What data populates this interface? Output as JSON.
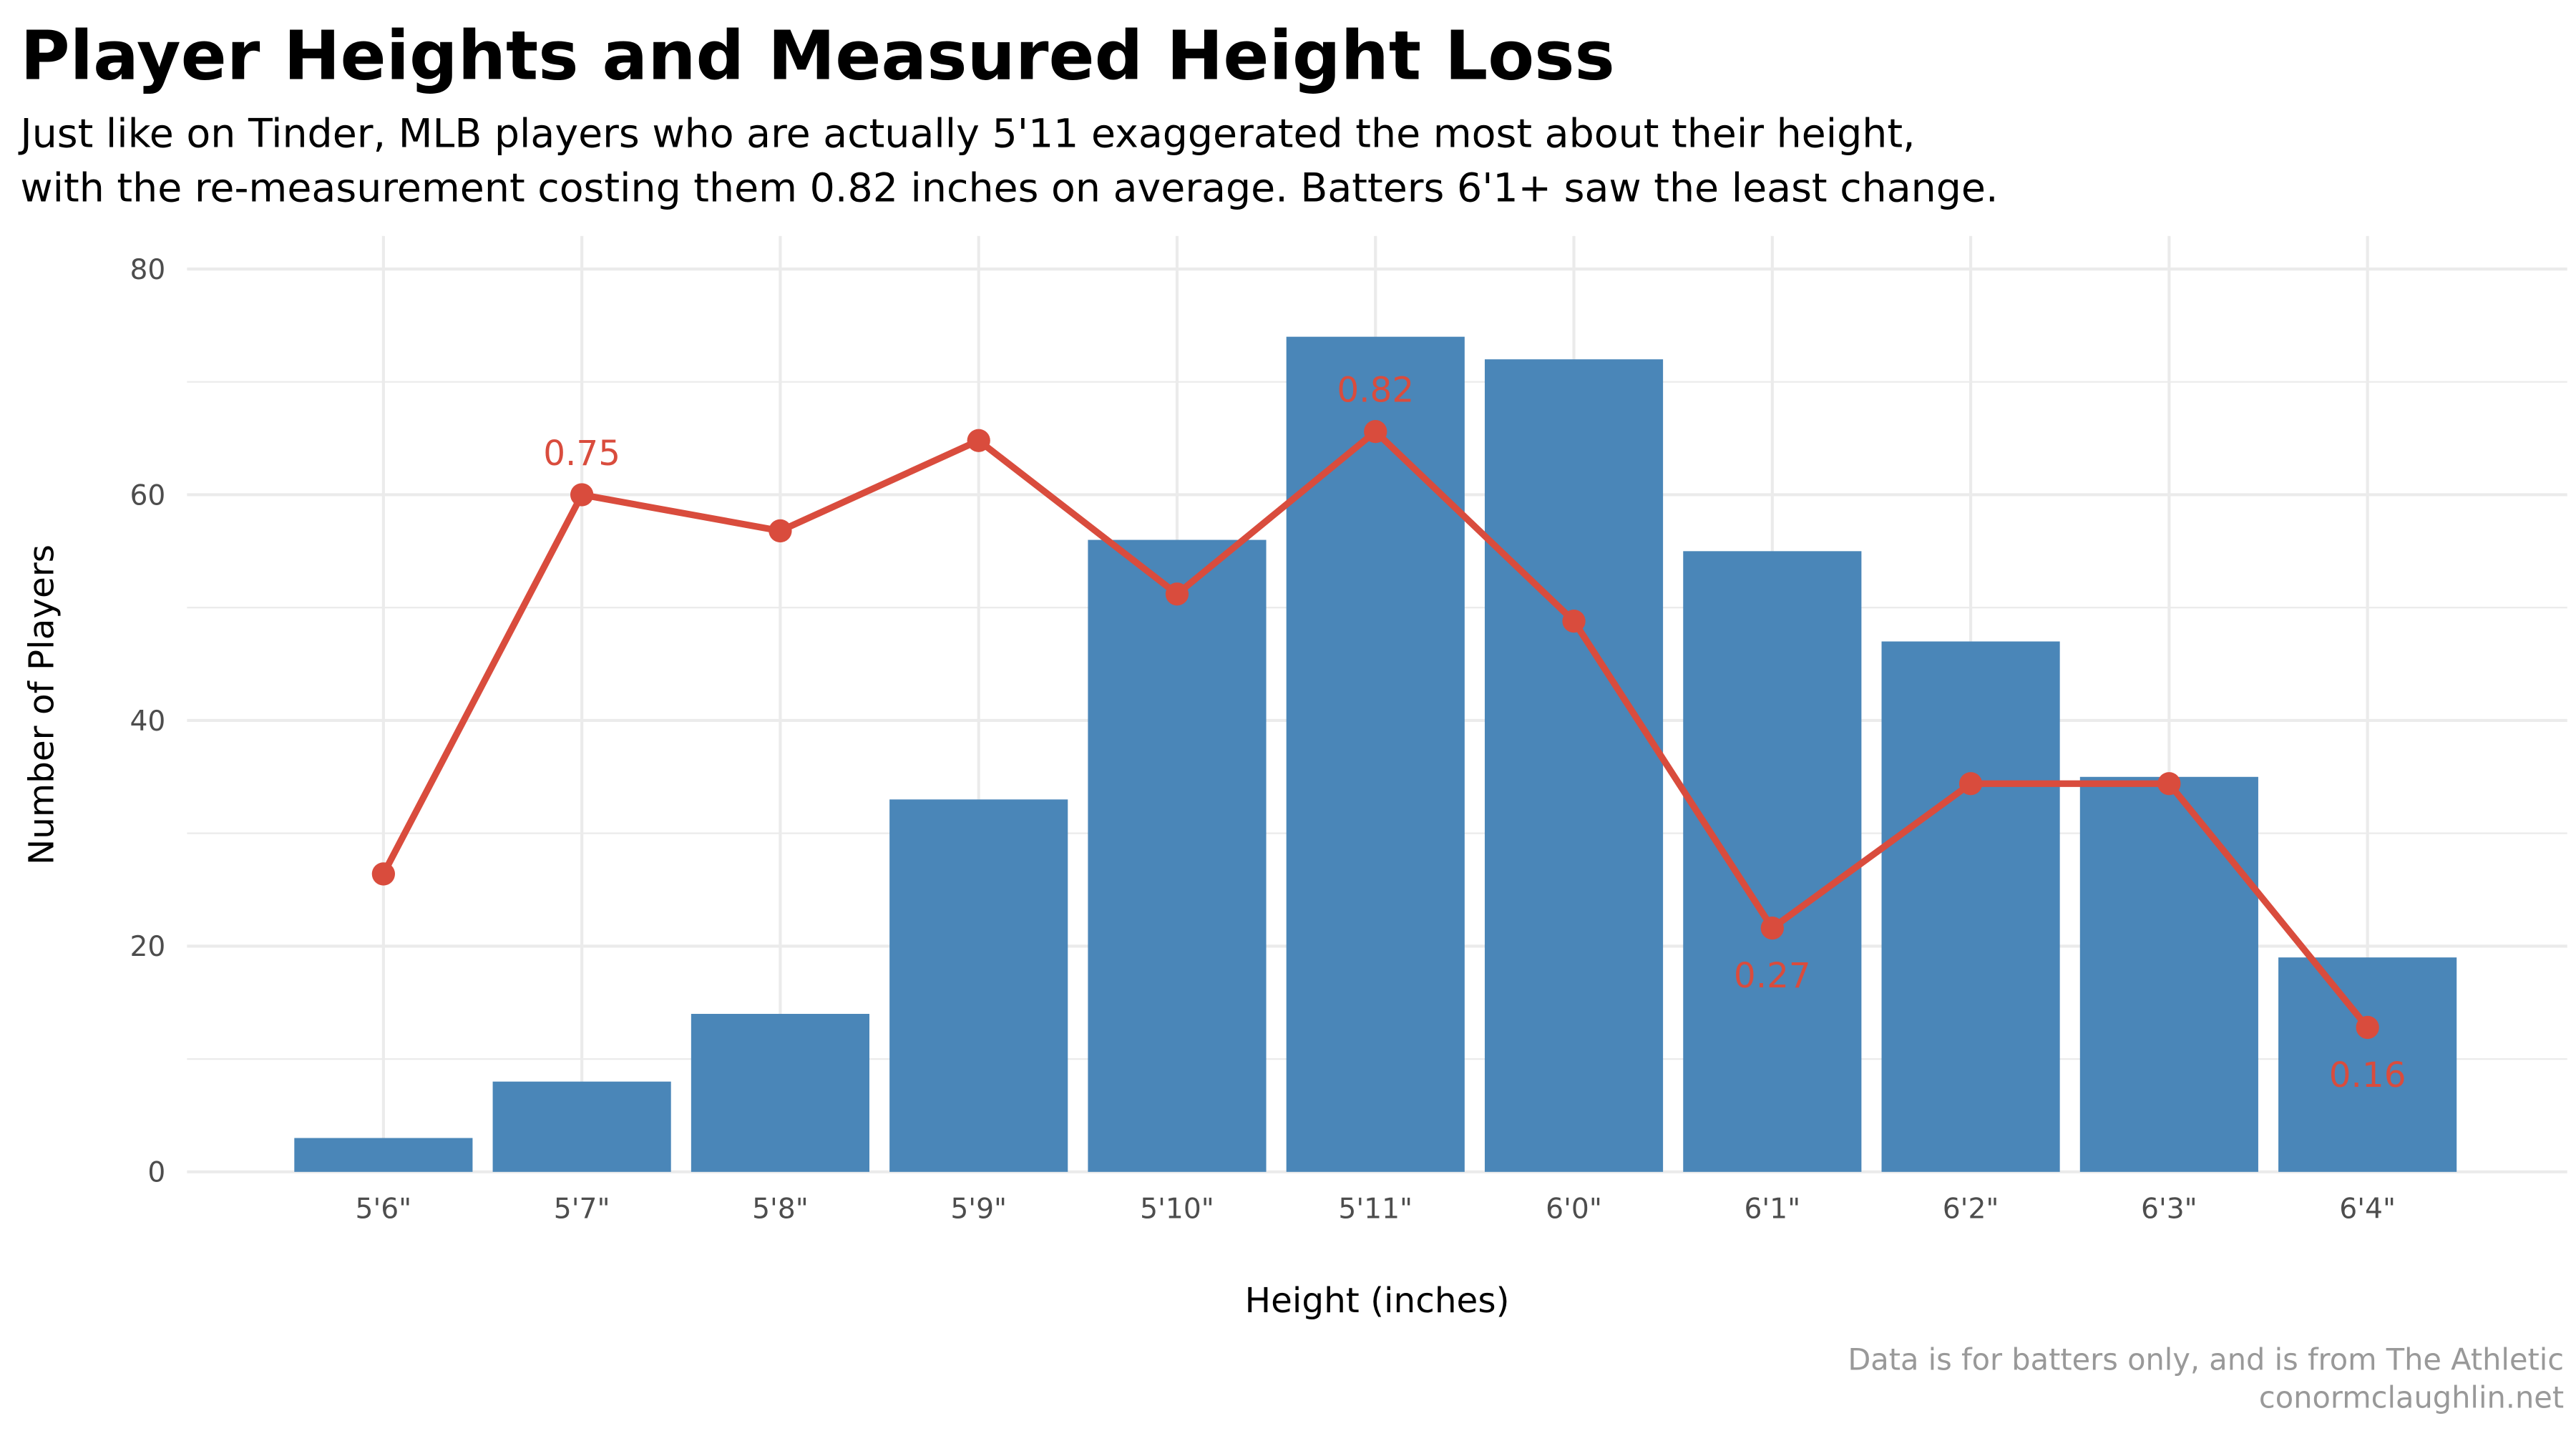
{
  "chart_data": {
    "type": "bar",
    "title": "Player Heights and Measured Height Loss",
    "subtitle": [
      "Just like on Tinder, MLB players who are actually 5'11 exaggerated the most about their height,",
      "with the re-measurement costing them 0.82 inches on average. Batters 6'1+ saw the least change."
    ],
    "xlabel": "Height (inches)",
    "ylabel": "Number of Players",
    "ylim": [
      0,
      80
    ],
    "yticks": [
      "0",
      "20",
      "40",
      "60",
      "80"
    ],
    "grid": true,
    "categories": [
      "5'6\"",
      "5'7\"",
      "5'8\"",
      "5'9\"",
      "5'10\"",
      "5'11\"",
      "6'0\"",
      "6'1\"",
      "6'2\"",
      "6'3\"",
      "6'4\""
    ],
    "series": [
      {
        "type": "bar",
        "values": [
          3,
          8,
          14,
          33,
          56,
          74,
          72,
          55,
          47,
          35,
          19
        ],
        "color": "#4a86b8"
      },
      {
        "type": "line",
        "values": [
          0.33,
          0.75,
          0.71,
          0.81,
          0.64,
          0.82,
          0.61,
          0.27,
          0.43,
          0.43,
          0.16
        ],
        "scale_to_count": 80,
        "color": "#d94c3d",
        "labels": [
          {
            "category": "5'7\"",
            "text": "0.75",
            "position": "above"
          },
          {
            "category": "5'11\"",
            "text": "0.82",
            "position": "above"
          },
          {
            "category": "6'1\"",
            "text": "0.27",
            "position": "below"
          },
          {
            "category": "6'4\"",
            "text": "0.16",
            "position": "below"
          }
        ]
      }
    ],
    "caption": [
      "Data is for batters only, and is from The Athletic",
      "conormclaughlin.net"
    ]
  }
}
